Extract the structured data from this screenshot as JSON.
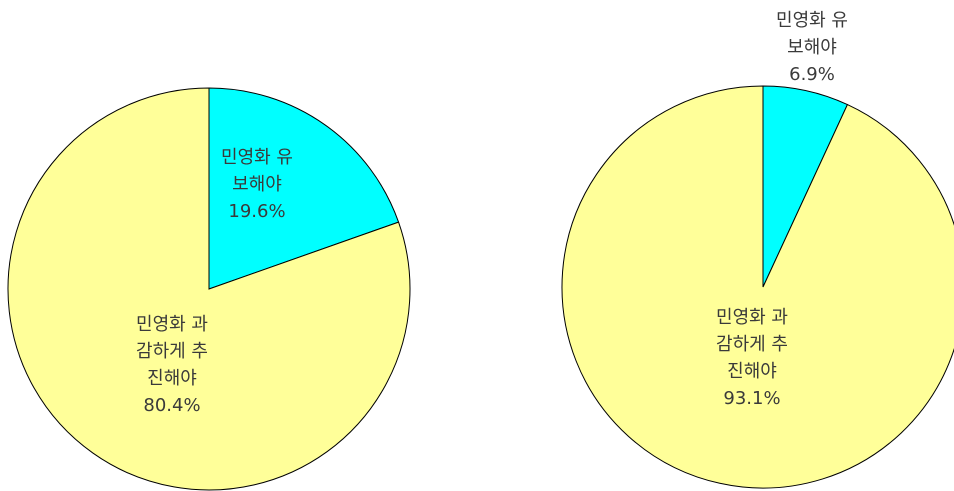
{
  "colors": {
    "yellow_slice": "#FFFF99",
    "cyan_slice": "#00FFFF",
    "outline": "#000000",
    "label_text": "#3a3a3a"
  },
  "chart_data": [
    {
      "type": "pie",
      "title": "",
      "slices": [
        {
          "label_lines": [
            "민영화 유",
            "보해야",
            "19.6%"
          ],
          "value": 19.6,
          "color": "#00FFFF"
        },
        {
          "label_lines": [
            "민영화 과",
            "감하게 추",
            "진해야",
            "80.4%"
          ],
          "value": 80.4,
          "color": "#FFFF99"
        }
      ],
      "start": "12 o'clock",
      "direction": "clockwise",
      "legend": "none (labels inside slices)"
    },
    {
      "type": "pie",
      "title": "",
      "slices": [
        {
          "label_lines": [
            "민영화 유",
            "보해야",
            "6.9%"
          ],
          "value": 6.9,
          "color": "#00FFFF"
        },
        {
          "label_lines": [
            "민영화 과",
            "감하게 추",
            "진해야",
            "93.1%"
          ],
          "value": 93.1,
          "color": "#FFFF99"
        }
      ],
      "start": "12 o'clock",
      "direction": "clockwise",
      "legend": "none (small slice labelled above the pie)"
    }
  ]
}
